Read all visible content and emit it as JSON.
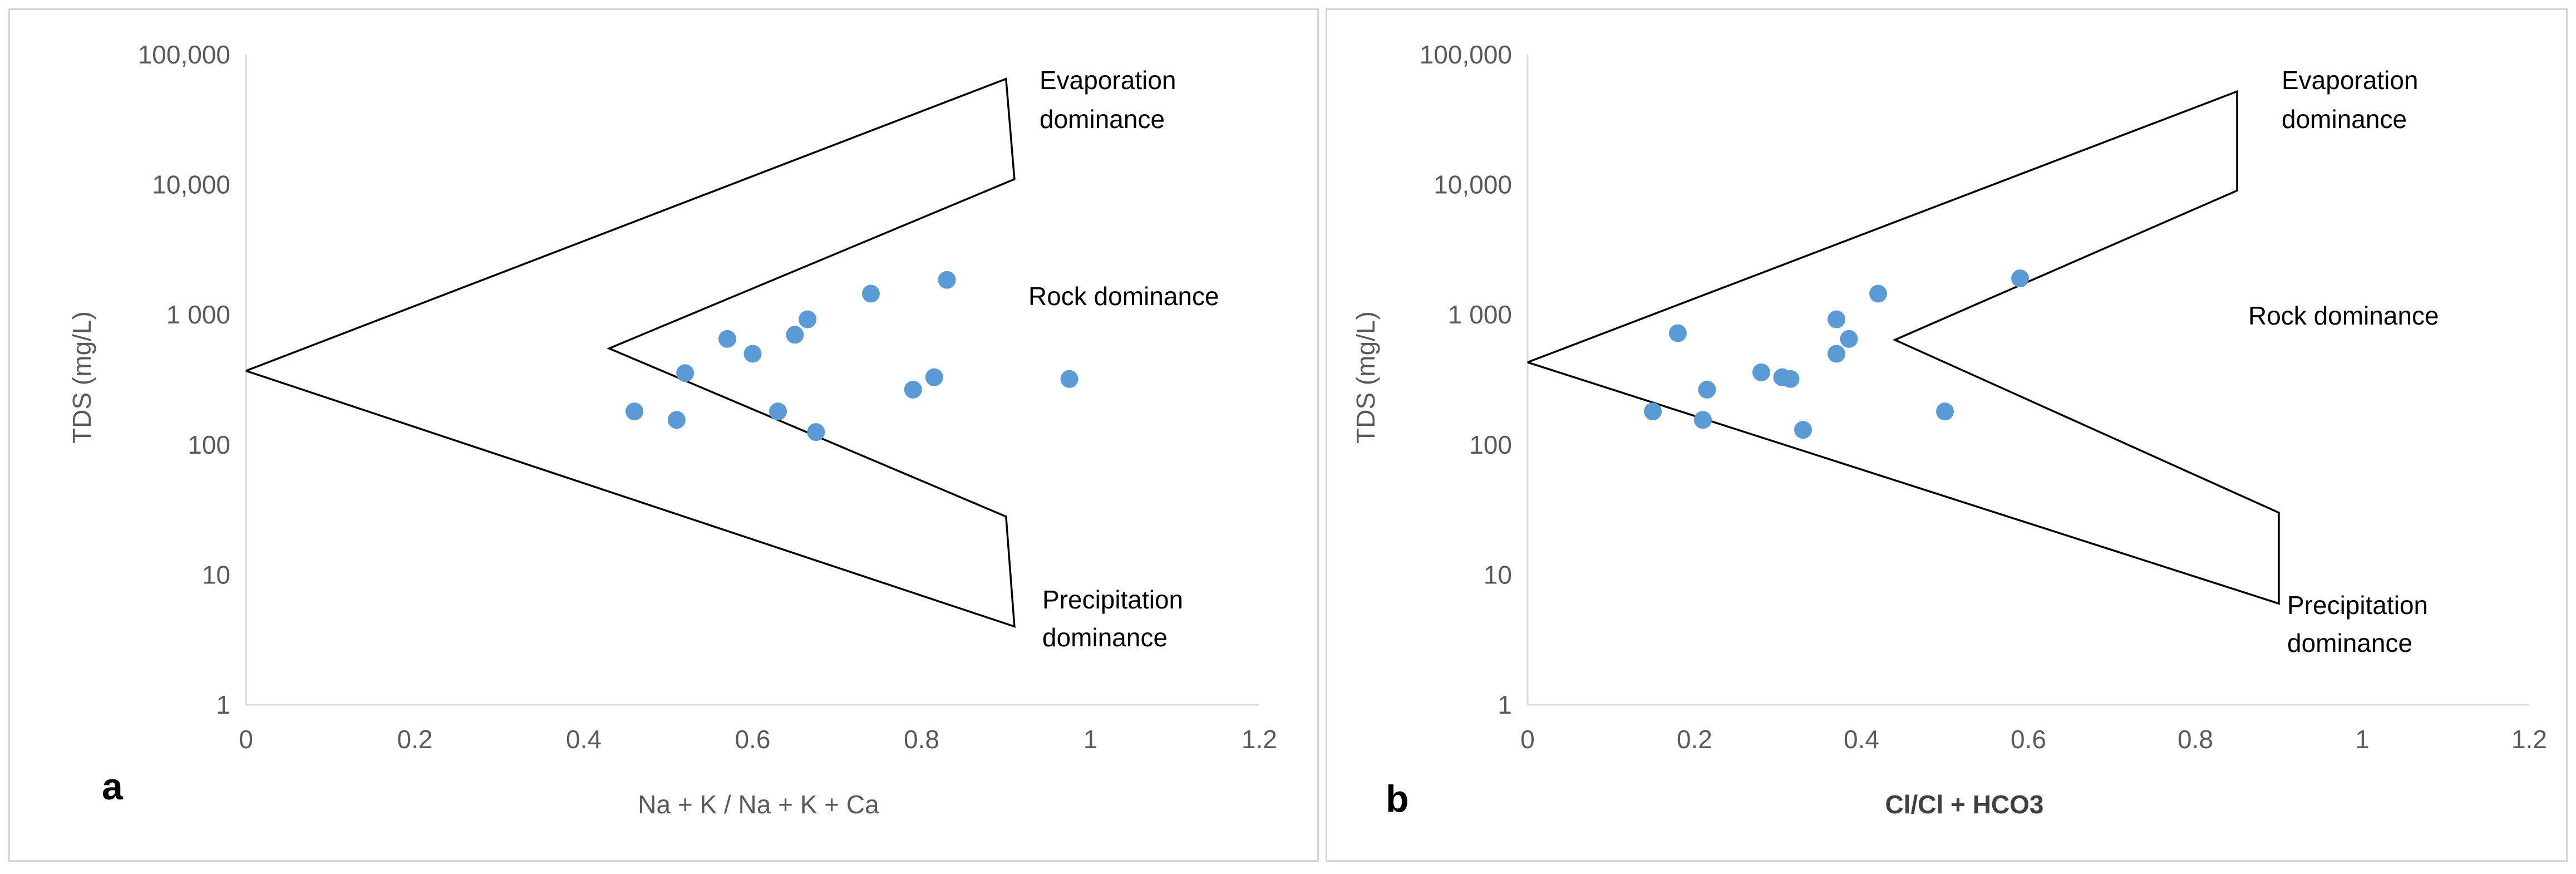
{
  "chart_data": [
    {
      "type": "scatter",
      "panel_label": "a",
      "title": "",
      "xlabel": "Na + K / Na + K + Ca",
      "ylabel": "TDS (mg/L)",
      "xlim": [
        0,
        1.2
      ],
      "ylim": [
        1,
        100000
      ],
      "y_scale": "log",
      "grid": false,
      "x_ticks": [
        "0",
        "0.2",
        "0.4",
        "0.6",
        "0.8",
        "1",
        "1.2"
      ],
      "y_ticks": [
        "1",
        "10",
        "100",
        "1 000",
        "10,000",
        "100,000"
      ],
      "region_labels": [
        {
          "line1": "Evaporation",
          "line2": "dominance"
        },
        {
          "line1": "Rock dominance",
          "line2": ""
        },
        {
          "line1": "Precipitation",
          "line2": "dominance"
        }
      ],
      "boundary_upper": [
        [
          0,
          370
        ],
        [
          0.9,
          65000
        ],
        [
          0.91,
          11000
        ],
        [
          0.43,
          550
        ],
        [
          0.9,
          28
        ],
        [
          0.91,
          4
        ],
        [
          0,
          370
        ]
      ],
      "points": [
        {
          "x": 0.46,
          "y": 180
        },
        {
          "x": 0.51,
          "y": 155
        },
        {
          "x": 0.52,
          "y": 355
        },
        {
          "x": 0.57,
          "y": 650
        },
        {
          "x": 0.6,
          "y": 500
        },
        {
          "x": 0.63,
          "y": 180
        },
        {
          "x": 0.65,
          "y": 700
        },
        {
          "x": 0.665,
          "y": 920
        },
        {
          "x": 0.675,
          "y": 125
        },
        {
          "x": 0.74,
          "y": 1450
        },
        {
          "x": 0.79,
          "y": 265
        },
        {
          "x": 0.815,
          "y": 330
        },
        {
          "x": 0.83,
          "y": 1850
        },
        {
          "x": 0.975,
          "y": 320
        }
      ]
    },
    {
      "type": "scatter",
      "panel_label": "b",
      "title": "",
      "xlabel": "Cl/Cl + HCO3",
      "ylabel": "TDS (mg/L)",
      "xlim": [
        0,
        1.2
      ],
      "ylim": [
        1,
        100000
      ],
      "y_scale": "log",
      "grid": false,
      "x_ticks": [
        "0",
        "0.2",
        "0.4",
        "0.6",
        "0.8",
        "1",
        "1.2"
      ],
      "y_ticks": [
        "1",
        "10",
        "100",
        "1 000",
        "10,000",
        "100,000"
      ],
      "region_labels": [
        {
          "line1": "Evaporation",
          "line2": "dominance"
        },
        {
          "line1": "Rock dominance",
          "line2": ""
        },
        {
          "line1": "Precipitation",
          "line2": "dominance"
        }
      ],
      "boundary_upper": [
        [
          0,
          430
        ],
        [
          0.85,
          52000
        ],
        [
          0.85,
          9000
        ],
        [
          0.44,
          640
        ],
        [
          0.9,
          30
        ],
        [
          0.9,
          6
        ],
        [
          0,
          430
        ]
      ],
      "points": [
        {
          "x": 0.15,
          "y": 180
        },
        {
          "x": 0.18,
          "y": 720
        },
        {
          "x": 0.21,
          "y": 155
        },
        {
          "x": 0.215,
          "y": 265
        },
        {
          "x": 0.28,
          "y": 360
        },
        {
          "x": 0.305,
          "y": 330
        },
        {
          "x": 0.315,
          "y": 320
        },
        {
          "x": 0.33,
          "y": 130
        },
        {
          "x": 0.37,
          "y": 920
        },
        {
          "x": 0.37,
          "y": 500
        },
        {
          "x": 0.385,
          "y": 650
        },
        {
          "x": 0.42,
          "y": 1450
        },
        {
          "x": 0.5,
          "y": 180
        },
        {
          "x": 0.59,
          "y": 1900
        }
      ]
    }
  ]
}
